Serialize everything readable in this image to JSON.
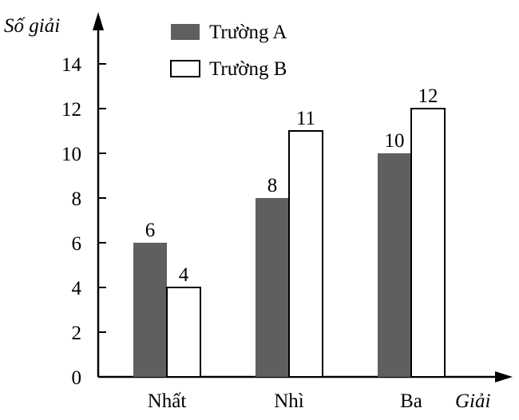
{
  "chart_data": {
    "type": "bar",
    "ylabel": "Số giải",
    "xlabel": "Giải",
    "categories": [
      "Nhất",
      "Nhì",
      "Ba"
    ],
    "series": [
      {
        "name": "Trường A",
        "values": [
          6,
          8,
          10
        ],
        "color": "#5f5f5f"
      },
      {
        "name": "Trường B",
        "values": [
          4,
          11,
          12
        ],
        "color": "#ffffff"
      }
    ],
    "yticks": [
      0,
      2,
      4,
      6,
      8,
      10,
      12,
      14
    ],
    "ylim": [
      0,
      14
    ],
    "grid": false,
    "legend_position": "top-left"
  }
}
